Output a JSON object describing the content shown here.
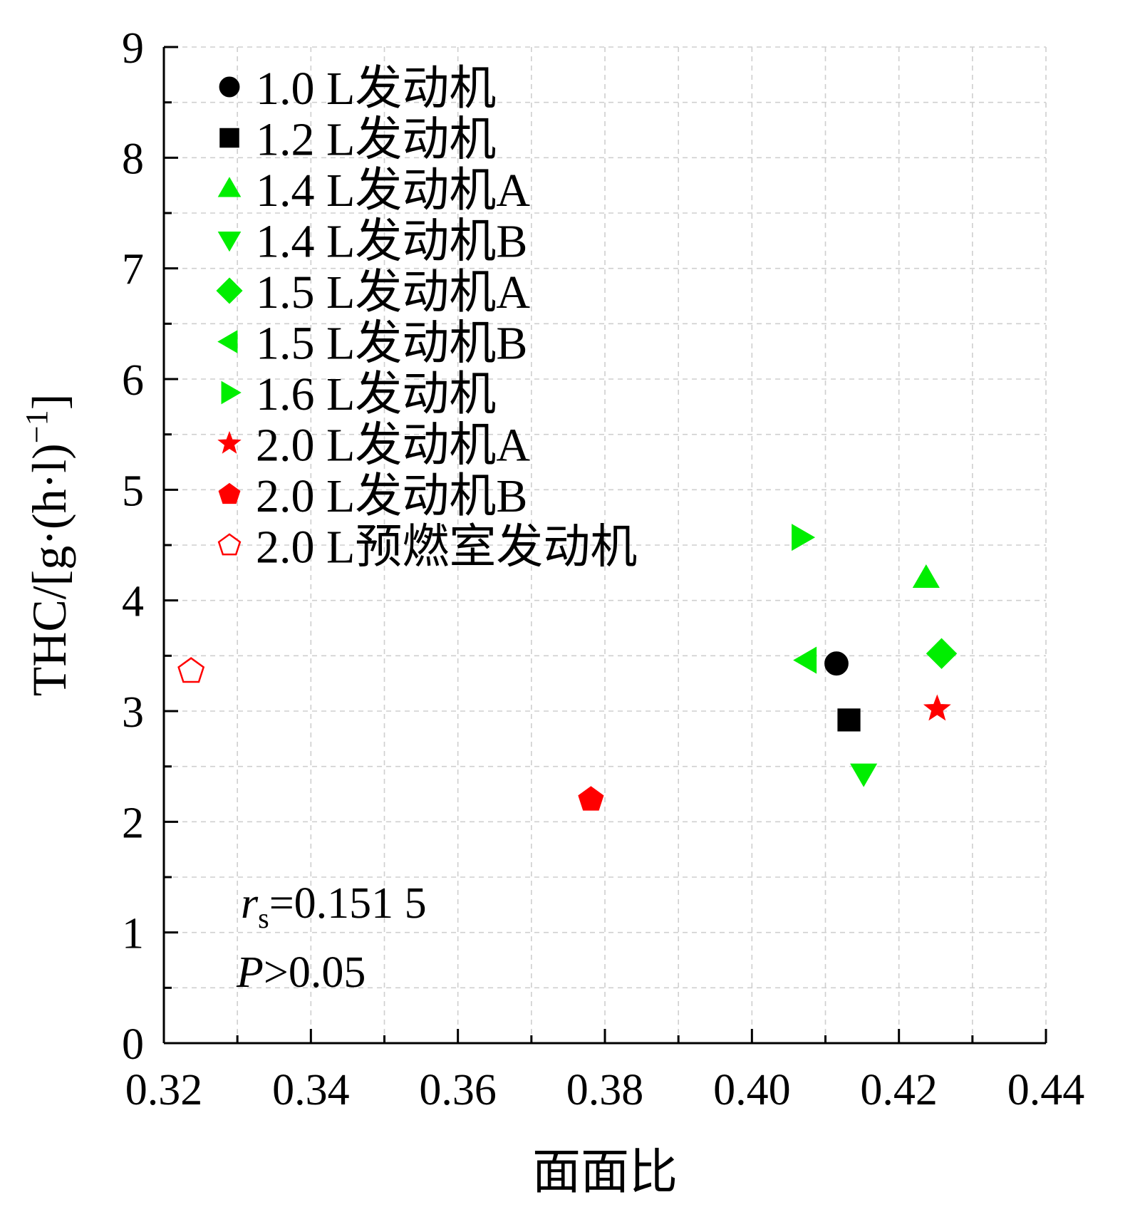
{
  "chart_data": {
    "type": "scatter",
    "title": "",
    "xlabel": "面面比",
    "ylabel": "THC/[g·(h·l)",
    "ylabel_sup": "−1",
    "ylabel_tail": "]",
    "xlim": [
      0.32,
      0.44
    ],
    "ylim": [
      0,
      9
    ],
    "xticks": [
      0.32,
      0.34,
      0.36,
      0.38,
      0.4,
      0.42,
      0.44
    ],
    "xtick_labels": [
      "0.32",
      "0.34",
      "0.36",
      "0.38",
      "0.40",
      "0.42",
      "0.44"
    ],
    "yticks": [
      0,
      1,
      2,
      3,
      4,
      5,
      6,
      7,
      8,
      9
    ],
    "ytick_labels": [
      "0",
      "1",
      "2",
      "3",
      "4",
      "5",
      "6",
      "7",
      "8",
      "9"
    ],
    "grid": true,
    "legend_position": "top-left",
    "series": [
      {
        "name": "1.0 L发动机",
        "marker": "circle",
        "color": "#000000",
        "filled": true,
        "x": 0.4115,
        "y": 3.43
      },
      {
        "name": "1.2 L发动机",
        "marker": "square",
        "color": "#000000",
        "filled": true,
        "x": 0.4132,
        "y": 2.92
      },
      {
        "name": "1.4 L发动机A",
        "marker": "triangle-up",
        "color": "#00ee00",
        "filled": true,
        "x": 0.4237,
        "y": 4.2
      },
      {
        "name": "1.4 L发动机B",
        "marker": "triangle-down",
        "color": "#00ee00",
        "filled": true,
        "x": 0.4152,
        "y": 2.44
      },
      {
        "name": "1.5 L发动机A",
        "marker": "diamond",
        "color": "#00ee00",
        "filled": true,
        "x": 0.4258,
        "y": 3.52
      },
      {
        "name": "1.5 L发动机B",
        "marker": "triangle-left",
        "color": "#00ee00",
        "filled": true,
        "x": 0.4075,
        "y": 3.46
      },
      {
        "name": "1.6 L发动机",
        "marker": "triangle-right",
        "color": "#00ee00",
        "filled": true,
        "x": 0.4067,
        "y": 4.57
      },
      {
        "name": "2.0 L发动机A",
        "marker": "star",
        "color": "#ff0000",
        "filled": true,
        "x": 0.4252,
        "y": 3.02
      },
      {
        "name": "2.0 L发动机B",
        "marker": "pentagon",
        "color": "#ff0000",
        "filled": true,
        "x": 0.3781,
        "y": 2.2
      },
      {
        "name": "2.0 L预燃室发动机",
        "marker": "pentagon",
        "color": "#ff0000",
        "filled": false,
        "x": 0.3237,
        "y": 3.36
      }
    ],
    "annotations": {
      "rs_symbol": "r",
      "rs_subscript": "s",
      "rs_value": "=0.151 5",
      "p_symbol": "P",
      "p_value": ">0.05"
    }
  }
}
